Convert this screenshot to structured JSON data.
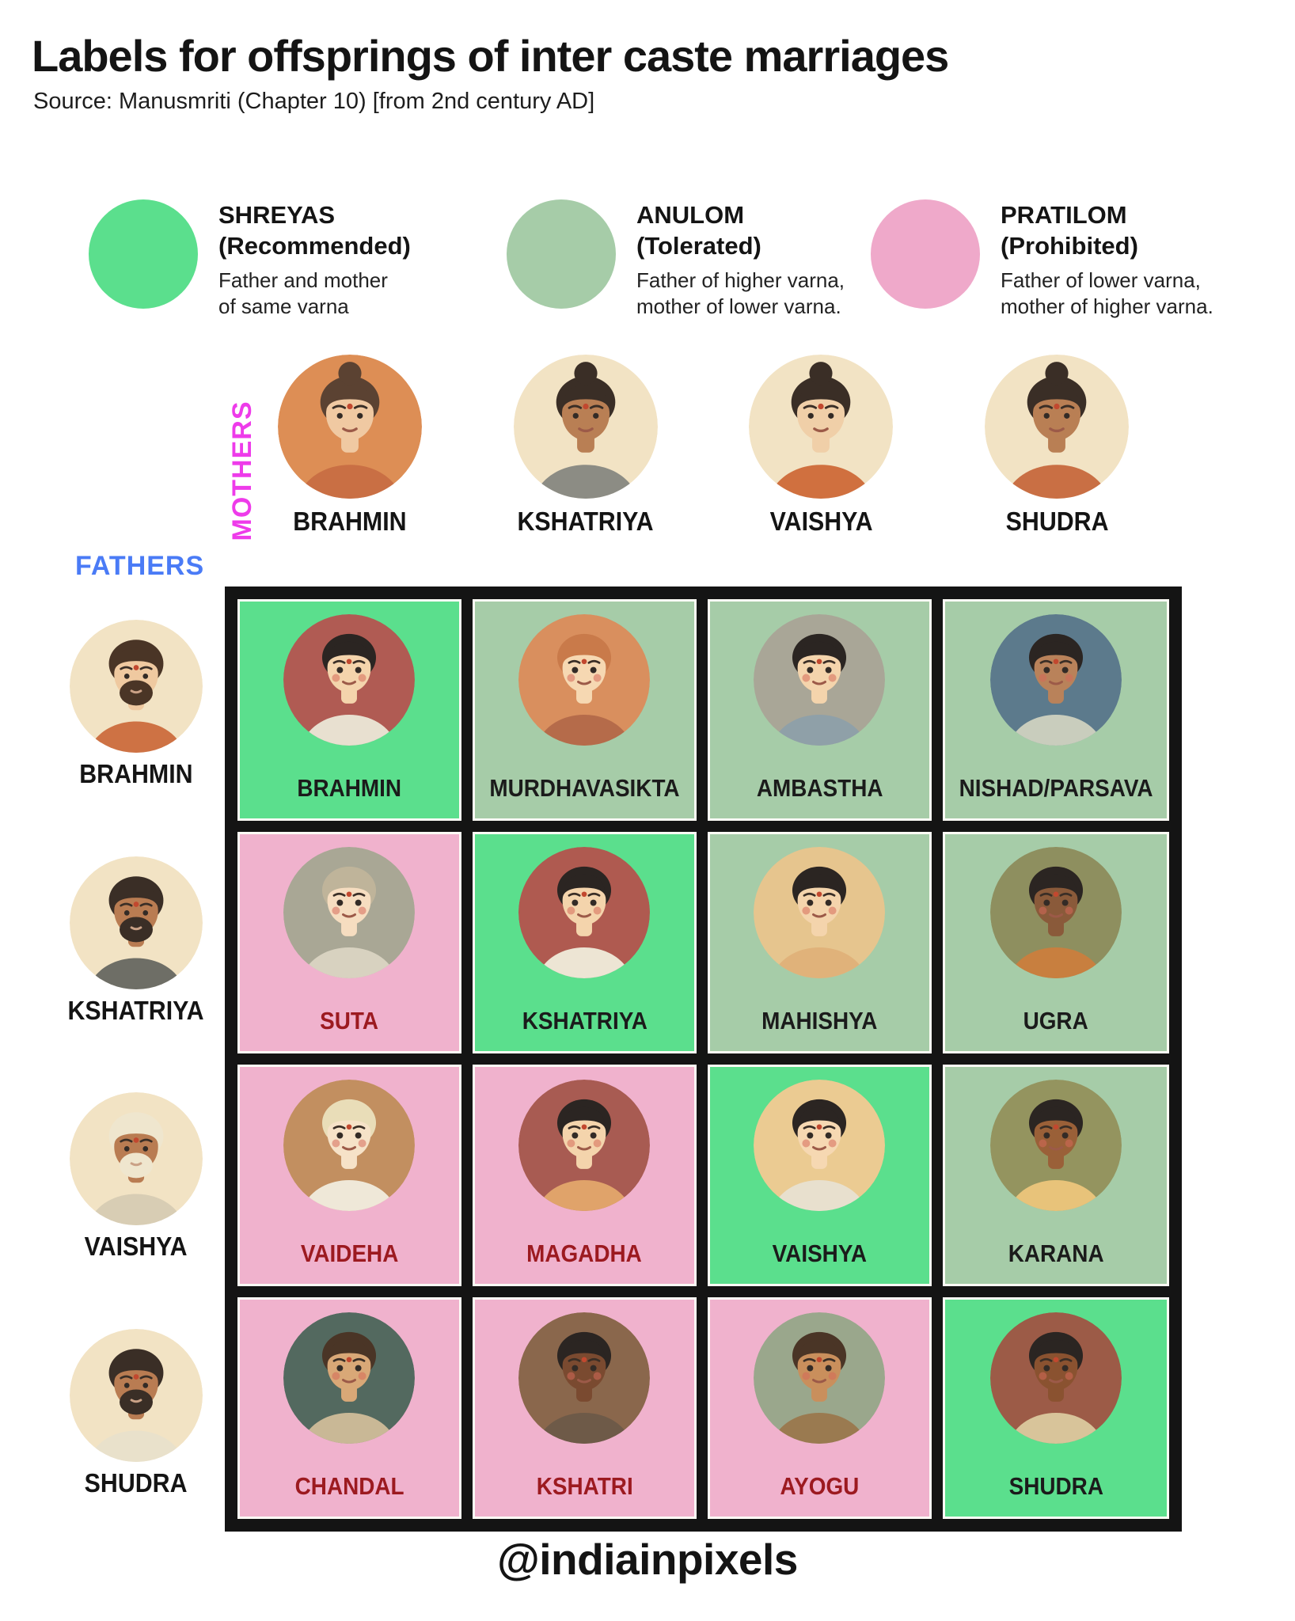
{
  "title": "Labels for offsprings of inter caste marriages",
  "source": "Source: Manusmriti (Chapter 10) [from 2nd century AD]",
  "footer": "@indiainpixels",
  "axes": {
    "mothers_label": "MOTHERS",
    "fathers_label": "FATHERS"
  },
  "colors": {
    "shreyas": "#5BDF8D",
    "anulom": "#A6CCA8",
    "pratilom": "#F0B2CD",
    "label_dark": "#1B1B1B",
    "label_red": "#9C1A20",
    "mothers_axis": "#EE3BEA",
    "fathers_axis": "#4A7BF6",
    "grid_frame": "#141414"
  },
  "legend": [
    {
      "name": "SHREYAS\n(Recommended)",
      "description": "Father and mother\nof same varna",
      "color": "#5BDF8D"
    },
    {
      "name": "ANULOM\n(Tolerated)",
      "description": "Father of higher varna,\nmother of lower varna.",
      "color": "#A6CCA8"
    },
    {
      "name": "PRATILOM\n(Prohibited)",
      "description": "Father of lower varna,\nmother of higher varna.",
      "color": "#EFA9CA"
    }
  ],
  "mothers": [
    "BRAHMIN",
    "KSHATRIYA",
    "VAISHYA",
    "SHUDRA"
  ],
  "fathers": [
    "BRAHMIN",
    "KSHATRIYA",
    "VAISHYA",
    "SHUDRA"
  ],
  "grid": [
    [
      {
        "label": "BRAHMIN",
        "category": "shreyas"
      },
      {
        "label": "MURDHAVASIKTA",
        "category": "anulom"
      },
      {
        "label": "AMBASTHA",
        "category": "anulom"
      },
      {
        "label": "NISHAD/PARSAVA",
        "category": "anulom"
      }
    ],
    [
      {
        "label": "SUTA",
        "category": "pratilom"
      },
      {
        "label": "KSHATRIYA",
        "category": "shreyas"
      },
      {
        "label": "MAHISHYA",
        "category": "anulom"
      },
      {
        "label": "UGRA",
        "category": "anulom"
      }
    ],
    [
      {
        "label": "VAIDEHA",
        "category": "pratilom"
      },
      {
        "label": "MAGADHA",
        "category": "pratilom"
      },
      {
        "label": "VAISHYA",
        "category": "shreyas"
      },
      {
        "label": "KARANA",
        "category": "anulom"
      }
    ],
    [
      {
        "label": "CHANDAL",
        "category": "pratilom"
      },
      {
        "label": "KSHATRI",
        "category": "pratilom"
      },
      {
        "label": "AYOGU",
        "category": "pratilom"
      },
      {
        "label": "SHUDRA",
        "category": "shreyas"
      }
    ]
  ],
  "avatars": {
    "m0": {
      "kind": "woman",
      "bg": "#DD8E55",
      "skin": "#F0C9A2",
      "hair": "#5B4232",
      "cloth": "#C96F44"
    },
    "m1": {
      "kind": "woman",
      "bg": "#F2E3C4",
      "skin": "#B97F54",
      "hair": "#3A2E26",
      "cloth": "#8C8C84"
    },
    "m2": {
      "kind": "woman",
      "bg": "#F2E3C4",
      "skin": "#F0CFA8",
      "hair": "#3A2E26",
      "cloth": "#D0703F"
    },
    "m3": {
      "kind": "woman",
      "bg": "#F2E3C4",
      "skin": "#B97F54",
      "hair": "#3A2E26",
      "cloth": "#C96F44"
    },
    "f0": {
      "kind": "man",
      "bg": "#F2E3C4",
      "skin": "#EFC9A0",
      "hair": "#4A3526",
      "cloth": "#CE7244"
    },
    "f1": {
      "kind": "man",
      "bg": "#F2E3C4",
      "skin": "#B97C52",
      "hair": "#3A2E26",
      "cloth": "#6E6E66"
    },
    "f2": {
      "kind": "man",
      "bg": "#F2E3C4",
      "skin": "#B97C52",
      "hair": "#EFE6CE",
      "cloth": "#D8CDB4"
    },
    "f3": {
      "kind": "man",
      "bg": "#F2E3C4",
      "skin": "#B97C52",
      "hair": "#3A2E26",
      "cloth": "#E9E1CB"
    },
    "c00": {
      "kind": "child",
      "bg": "#B05B53",
      "skin": "#F4D4AC",
      "hair": "#2B2522",
      "cloth": "#E8E0D0"
    },
    "c01": {
      "kind": "child",
      "bg": "#D98F5E",
      "skin": "#F6D8B2",
      "hair": "#C97A4A",
      "cloth": "#B56B4A"
    },
    "c02": {
      "kind": "child",
      "bg": "#A9A697",
      "skin": "#F4D4AC",
      "hair": "#2B2522",
      "cloth": "#8FA0A8"
    },
    "c03": {
      "kind": "child",
      "bg": "#5C7A8C",
      "skin": "#B9825A",
      "hair": "#2B2522",
      "cloth": "#C9CDBD"
    },
    "c10": {
      "kind": "child",
      "bg": "#A9A795",
      "skin": "#F6DDC0",
      "hair": "#BFB49A",
      "cloth": "#D8D2C0"
    },
    "c11": {
      "kind": "child",
      "bg": "#AF5A50",
      "skin": "#F4D4AC",
      "hair": "#2B2522",
      "cloth": "#EDE5D4"
    },
    "c12": {
      "kind": "child",
      "bg": "#E6C58E",
      "skin": "#F4D4AC",
      "hair": "#2B2522",
      "cloth": "#E0B27A"
    },
    "c13": {
      "kind": "child",
      "bg": "#8E8F5F",
      "skin": "#8A5A3A",
      "hair": "#2B2522",
      "cloth": "#C87F3F"
    },
    "c20": {
      "kind": "child",
      "bg": "#C28F60",
      "skin": "#F6E2C8",
      "hair": "#E9DDB8",
      "cloth": "#EFE8D8"
    },
    "c21": {
      "kind": "child",
      "bg": "#A85B52",
      "skin": "#F4D4AC",
      "hair": "#2B2522",
      "cloth": "#E0A36A"
    },
    "c22": {
      "kind": "child",
      "bg": "#EBCB92",
      "skin": "#F6D8B2",
      "hair": "#2B2522",
      "cloth": "#E8E0CE"
    },
    "c23": {
      "kind": "child",
      "bg": "#94945F",
      "skin": "#9A6038",
      "hair": "#2B2522",
      "cloth": "#E8C37A"
    },
    "c30": {
      "kind": "child",
      "bg": "#53695F",
      "skin": "#D9A877",
      "hair": "#4A3526",
      "cloth": "#C9B896"
    },
    "c31": {
      "kind": "child",
      "bg": "#8A674C",
      "skin": "#7A4A30",
      "hair": "#2B2522",
      "cloth": "#6E5A48"
    },
    "c32": {
      "kind": "child",
      "bg": "#9AA78C",
      "skin": "#C98F5C",
      "hair": "#4A3526",
      "cloth": "#9A7A50"
    },
    "c33": {
      "kind": "child",
      "bg": "#9C5B47",
      "skin": "#8A5230",
      "hair": "#2B2522",
      "cloth": "#D8C49A"
    }
  },
  "chart_data": {
    "type": "table",
    "title": "Labels for offsprings of inter caste marriages",
    "source": "Manusmriti (Chapter 10) [from 2nd century AD]",
    "columns_axis": "MOTHERS",
    "rows_axis": "FATHERS",
    "columns": [
      "BRAHMIN",
      "KSHATRIYA",
      "VAISHYA",
      "SHUDRA"
    ],
    "rows": [
      "BRAHMIN",
      "KSHATRIYA",
      "VAISHYA",
      "SHUDRA"
    ],
    "cells": [
      [
        {
          "offspring": "BRAHMIN",
          "category": "SHREYAS"
        },
        {
          "offspring": "MURDHAVASIKTA",
          "category": "ANULOM"
        },
        {
          "offspring": "AMBASTHA",
          "category": "ANULOM"
        },
        {
          "offspring": "NISHAD/PARSAVA",
          "category": "ANULOM"
        }
      ],
      [
        {
          "offspring": "SUTA",
          "category": "PRATILOM"
        },
        {
          "offspring": "KSHATRIYA",
          "category": "SHREYAS"
        },
        {
          "offspring": "MAHISHYA",
          "category": "ANULOM"
        },
        {
          "offspring": "UGRA",
          "category": "ANULOM"
        }
      ],
      [
        {
          "offspring": "VAIDEHA",
          "category": "PRATILOM"
        },
        {
          "offspring": "MAGADHA",
          "category": "PRATILOM"
        },
        {
          "offspring": "VAISHYA",
          "category": "SHREYAS"
        },
        {
          "offspring": "KARANA",
          "category": "ANULOM"
        }
      ],
      [
        {
          "offspring": "CHANDAL",
          "category": "PRATILOM"
        },
        {
          "offspring": "KSHATRI",
          "category": "PRATILOM"
        },
        {
          "offspring": "AYOGU",
          "category": "PRATILOM"
        },
        {
          "offspring": "SHUDRA",
          "category": "SHREYAS"
        }
      ]
    ],
    "legend": [
      {
        "label": "SHREYAS (Recommended)",
        "meaning": "Father and mother of same varna",
        "color": "#5BDF8D"
      },
      {
        "label": "ANULOM (Tolerated)",
        "meaning": "Father of higher varna, mother of lower varna.",
        "color": "#A6CCA8"
      },
      {
        "label": "PRATILOM (Prohibited)",
        "meaning": "Father of lower varna, mother of higher varna.",
        "color": "#EFA9CA"
      }
    ]
  }
}
